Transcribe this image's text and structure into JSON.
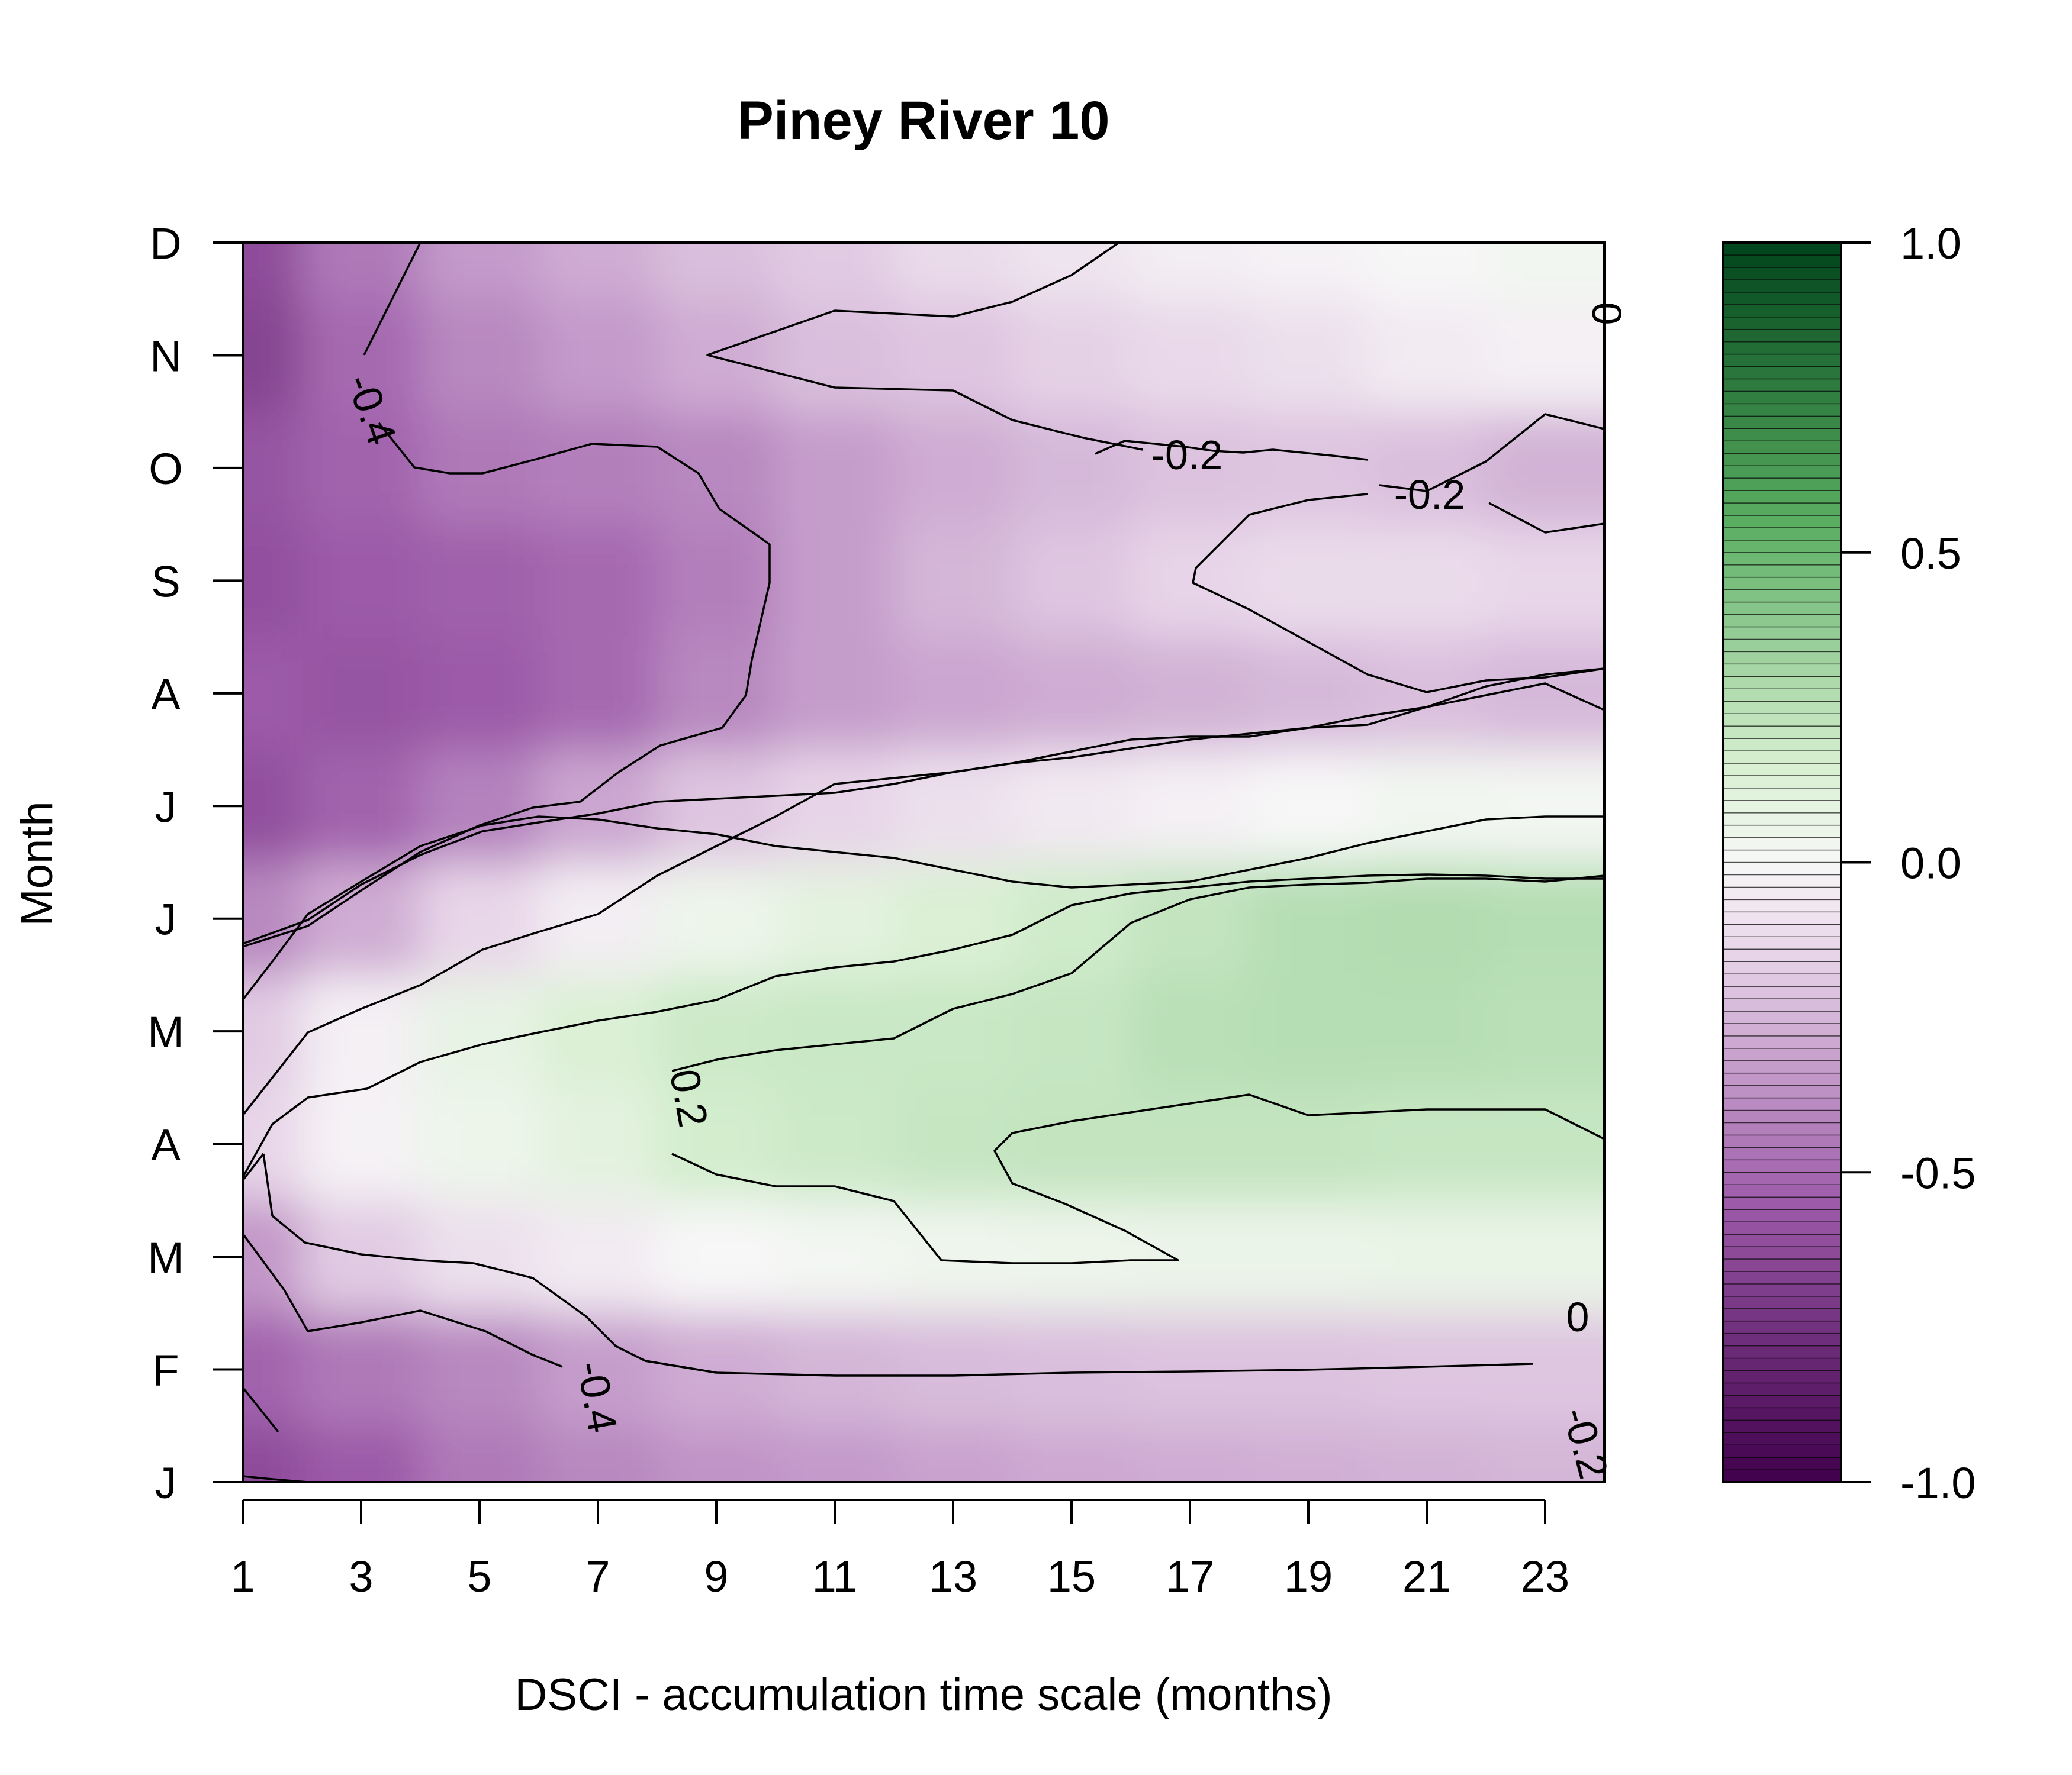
{
  "chart_data": {
    "type": "heatmap",
    "title": "Piney River 10",
    "xlabel": "DSCI - accumulation time scale (months)",
    "ylabel": "Month",
    "x": [
      1,
      3,
      5,
      7,
      9,
      11,
      13,
      15,
      17,
      19,
      21,
      23
    ],
    "x_tick_labels": [
      "1",
      "3",
      "5",
      "7",
      "9",
      "11",
      "13",
      "15",
      "17",
      "19",
      "21",
      "23"
    ],
    "xlim": [
      1,
      24
    ],
    "y_tick_labels": [
      "J",
      "F",
      "M",
      "A",
      "M",
      "J",
      "J",
      "A",
      "S",
      "O",
      "N",
      "D"
    ],
    "ylim": [
      1,
      12
    ],
    "z": [
      [
        -0.62,
        -0.55,
        -0.45,
        -0.4,
        -0.36,
        -0.34,
        -0.31,
        -0.29,
        -0.28,
        -0.27,
        -0.26,
        -0.25
      ],
      [
        -0.52,
        -0.45,
        -0.4,
        -0.33,
        -0.28,
        -0.25,
        -0.23,
        -0.22,
        -0.21,
        -0.21,
        -0.2,
        -0.2
      ],
      [
        -0.35,
        -0.18,
        -0.1,
        -0.05,
        0.0,
        0.02,
        0.04,
        0.05,
        0.06,
        0.06,
        0.07,
        0.07
      ],
      [
        -0.15,
        -0.02,
        0.05,
        0.1,
        0.17,
        0.19,
        0.21,
        0.22,
        0.22,
        0.22,
        0.21,
        0.21
      ],
      [
        -0.18,
        -0.03,
        0.08,
        0.14,
        0.19,
        0.2,
        0.2,
        0.21,
        0.25,
        0.26,
        0.26,
        0.25
      ],
      [
        -0.4,
        -0.28,
        -0.14,
        -0.04,
        0.05,
        0.1,
        0.14,
        0.18,
        0.22,
        0.26,
        0.27,
        0.26
      ],
      [
        -0.6,
        -0.52,
        -0.42,
        -0.3,
        -0.2,
        -0.15,
        -0.1,
        -0.06,
        -0.03,
        0.0,
        0.03,
        0.02
      ],
      [
        -0.55,
        -0.58,
        -0.55,
        -0.5,
        -0.4,
        -0.33,
        -0.3,
        -0.28,
        -0.26,
        -0.24,
        -0.22,
        -0.24
      ],
      [
        -0.6,
        -0.55,
        -0.53,
        -0.5,
        -0.43,
        -0.33,
        -0.25,
        -0.2,
        -0.15,
        -0.12,
        -0.12,
        -0.14
      ],
      [
        -0.58,
        -0.52,
        -0.45,
        -0.43,
        -0.4,
        -0.33,
        -0.28,
        -0.24,
        -0.21,
        -0.2,
        -0.22,
        -0.26
      ],
      [
        -0.66,
        -0.5,
        -0.4,
        -0.34,
        -0.28,
        -0.22,
        -0.2,
        -0.16,
        -0.13,
        -0.1,
        -0.05,
        -0.03
      ],
      [
        -0.62,
        -0.45,
        -0.34,
        -0.28,
        -0.22,
        -0.18,
        -0.12,
        -0.08,
        -0.04,
        -0.02,
        0.0,
        0.03
      ]
    ],
    "zlim": [
      -1.0,
      1.0
    ],
    "contour_levels": [
      -0.4,
      -0.2,
      0,
      0.2
    ],
    "contour_labels": [
      "-0.4",
      "-0.4",
      "-0.2",
      "-0.2",
      "-0.2",
      "0",
      "0",
      "0.2"
    ],
    "colorbar_ticks": [
      -1.0,
      -0.5,
      0.0,
      0.5,
      1.0
    ],
    "colorbar_tick_labels": [
      "-1.0",
      "-0.5",
      "0.0",
      "0.5",
      "1.0"
    ],
    "colors": {
      "low": "#40004b",
      "mid_low": "#9c5aa8",
      "light_low": "#e7d4e8",
      "zero": "#f7f7f7",
      "light_high": "#d9f0d3",
      "mid_high": "#5aae61",
      "high": "#00441b"
    },
    "grid": false,
    "legend": "right (colorbar)"
  }
}
